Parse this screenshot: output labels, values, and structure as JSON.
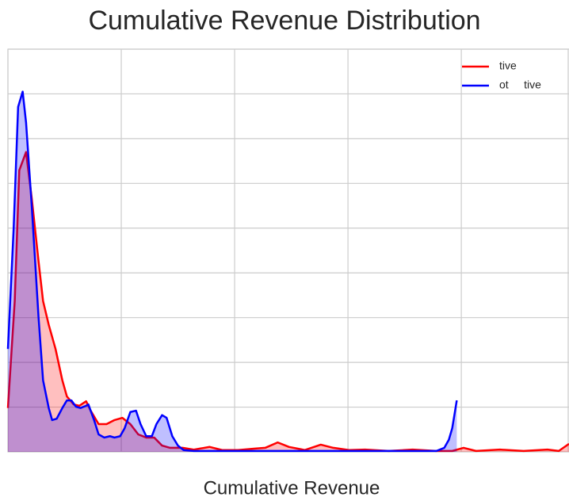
{
  "chart_data": {
    "type": "line",
    "title": "Cumulative Revenue Distribution",
    "x_label": "Cumulative Revenue",
    "xlim": [
      0,
      4.95
    ],
    "xticks": [
      0,
      1,
      2,
      3,
      4
    ],
    "ylim": [
      0,
      9
    ],
    "yticks": [
      0,
      1,
      2,
      3,
      4,
      5,
      6,
      7,
      8,
      9
    ],
    "grid": true,
    "legend": "upper right",
    "fill_alpha": 0.25,
    "series": [
      {
        "name": "tive",
        "color": "#ff0000",
        "x": [
          0,
          0.06,
          0.1,
          0.16,
          0.21,
          0.27,
          0.31,
          0.36,
          0.42,
          0.48,
          0.52,
          0.58,
          0.63,
          0.69,
          0.73,
          0.8,
          0.87,
          0.94,
          1.01,
          1.08,
          1.15,
          1.22,
          1.29,
          1.36,
          1.43,
          1.54,
          1.64,
          1.78,
          1.89,
          2.03,
          2.17,
          2.27,
          2.38,
          2.48,
          2.62,
          2.76,
          2.87,
          3.01,
          3.15,
          3.36,
          3.57,
          3.78,
          3.92,
          4.02,
          4.13,
          4.34,
          4.55,
          4.76,
          4.86,
          4.95
        ],
        "values": [
          0.98,
          3.37,
          6.29,
          6.7,
          5.67,
          4.26,
          3.37,
          2.84,
          2.3,
          1.6,
          1.24,
          1.06,
          1.03,
          1.13,
          0.92,
          0.62,
          0.62,
          0.71,
          0.76,
          0.62,
          0.39,
          0.32,
          0.32,
          0.14,
          0.09,
          0.09,
          0.05,
          0.11,
          0.04,
          0.04,
          0.07,
          0.09,
          0.21,
          0.11,
          0.04,
          0.16,
          0.09,
          0.04,
          0.05,
          0.02,
          0.05,
          0.02,
          0.02,
          0.09,
          0.02,
          0.05,
          0.02,
          0.05,
          0.02,
          0.18
        ]
      },
      {
        "name": "ot     tive",
        "color": "#0000ff",
        "x": [
          0,
          0.05,
          0.09,
          0.13,
          0.16,
          0.21,
          0.27,
          0.31,
          0.36,
          0.39,
          0.43,
          0.48,
          0.52,
          0.56,
          0.6,
          0.64,
          0.69,
          0.71,
          0.76,
          0.8,
          0.85,
          0.9,
          0.94,
          0.99,
          1.03,
          1.08,
          1.13,
          1.17,
          1.22,
          1.27,
          1.31,
          1.36,
          1.4,
          1.45,
          1.5,
          1.55,
          1.64,
          2.03,
          2.73,
          3.43,
          3.78,
          3.85,
          3.89,
          3.92,
          3.96
        ],
        "values": [
          2.3,
          4.96,
          7.71,
          8.05,
          7.36,
          5.5,
          3.01,
          1.6,
          0.98,
          0.71,
          0.74,
          0.98,
          1.15,
          1.15,
          1.01,
          0.98,
          1.03,
          1.06,
          0.71,
          0.39,
          0.32,
          0.35,
          0.32,
          0.35,
          0.53,
          0.89,
          0.92,
          0.62,
          0.35,
          0.35,
          0.62,
          0.82,
          0.76,
          0.35,
          0.14,
          0.04,
          0.02,
          0.02,
          0.02,
          0.02,
          0.02,
          0.09,
          0.27,
          0.53,
          1.15
        ]
      }
    ]
  }
}
